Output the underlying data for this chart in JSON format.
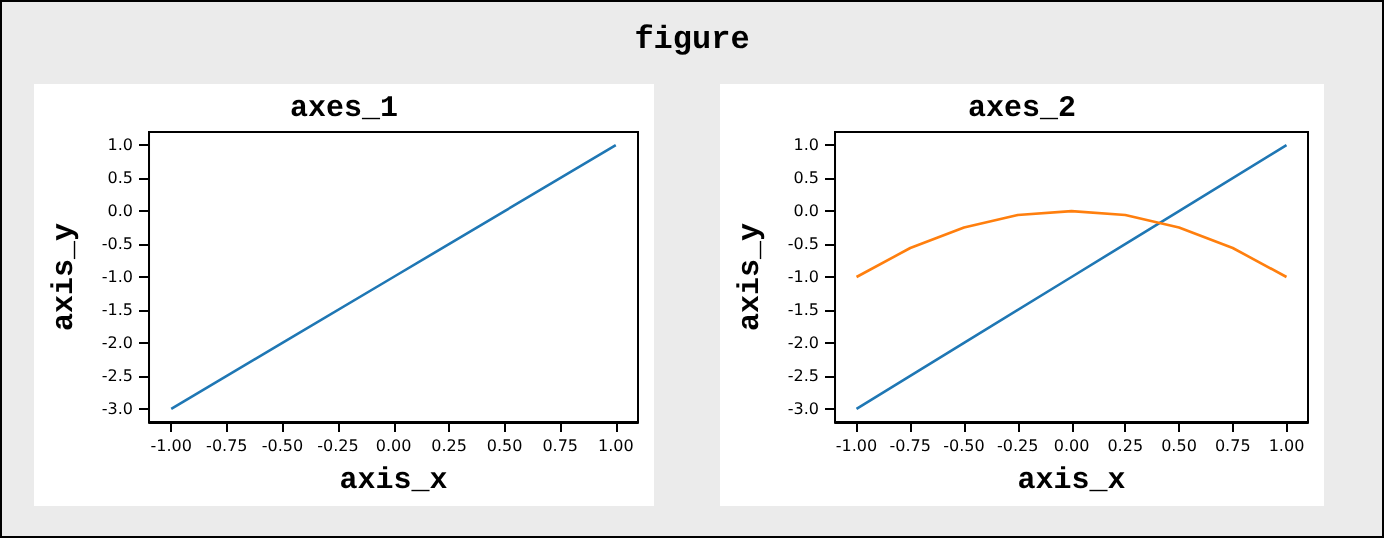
{
  "chart_data": [
    {
      "type": "line",
      "title": "axes_1",
      "xlabel": "axis_x",
      "ylabel": "axis_y",
      "marker": "none",
      "line_style": "solid",
      "annotations": [
        "figure"
      ],
      "xlim": [
        -1.1,
        1.1
      ],
      "ylim": [
        -3.2,
        1.2
      ],
      "xticks": [
        {
          "value": -1,
          "label": "-1.00"
        },
        {
          "value": -0.75,
          "label": "-0.75"
        },
        {
          "value": -0.5,
          "label": "-0.50"
        },
        {
          "value": -0.25,
          "label": "-0.25"
        },
        {
          "value": 0,
          "label": "0.00"
        },
        {
          "value": 0.25,
          "label": "0.25"
        },
        {
          "value": 0.5,
          "label": "0.50"
        },
        {
          "value": 0.75,
          "label": "0.75"
        },
        {
          "value": 1,
          "label": "1.00"
        }
      ],
      "yticks": [
        {
          "value": -3,
          "label": "-3.0"
        },
        {
          "value": -2.5,
          "label": "-2.5"
        },
        {
          "value": -2,
          "label": "-2.0"
        },
        {
          "value": -1.5,
          "label": "-1.5"
        },
        {
          "value": -1,
          "label": "-1.0"
        },
        {
          "value": -0.5,
          "label": "-0.5"
        },
        {
          "value": 0,
          "label": "0.0"
        },
        {
          "value": 0.5,
          "label": "0.5"
        },
        {
          "value": 1,
          "label": "1.0"
        }
      ],
      "series": [
        {
          "color": "#1f77b4",
          "x": [
            -1,
            -0.5,
            0,
            0.5,
            1
          ],
          "values": [
            -3,
            -2,
            -1,
            0,
            1
          ]
        }
      ]
    },
    {
      "type": "line",
      "title": "axes_2",
      "xlabel": "axis_x",
      "ylabel": "axis_y",
      "marker": "none",
      "line_style": "solid",
      "xlim": [
        -1.1,
        1.1
      ],
      "ylim": [
        -3.2,
        1.2
      ],
      "xticks": [
        {
          "value": -1,
          "label": "-1.00"
        },
        {
          "value": -0.75,
          "label": "-0.75"
        },
        {
          "value": -0.5,
          "label": "-0.50"
        },
        {
          "value": -0.25,
          "label": "-0.25"
        },
        {
          "value": 0,
          "label": "0.00"
        },
        {
          "value": 0.25,
          "label": "0.25"
        },
        {
          "value": 0.5,
          "label": "0.50"
        },
        {
          "value": 0.75,
          "label": "0.75"
        },
        {
          "value": 1,
          "label": "1.00"
        }
      ],
      "yticks": [
        {
          "value": -3,
          "label": "-3.0"
        },
        {
          "value": -2.5,
          "label": "-2.5"
        },
        {
          "value": -2,
          "label": "-2.0"
        },
        {
          "value": -1.5,
          "label": "-1.5"
        },
        {
          "value": -1,
          "label": "-1.0"
        },
        {
          "value": -0.5,
          "label": "-0.5"
        },
        {
          "value": 0,
          "label": "0.0"
        },
        {
          "value": 0.5,
          "label": "0.5"
        },
        {
          "value": 1,
          "label": "1.0"
        }
      ],
      "series": [
        {
          "color": "#1f77b4",
          "x": [
            -1,
            -0.5,
            0,
            0.5,
            1
          ],
          "values": [
            -3,
            -2,
            -1,
            0,
            1
          ]
        },
        {
          "color": "#ff7f0e",
          "x": [
            -1,
            -0.75,
            -0.5,
            -0.25,
            0,
            0.25,
            0.5,
            0.75,
            1
          ],
          "values": [
            -1,
            -0.56,
            -0.25,
            -0.06,
            0,
            -0.06,
            -0.25,
            -0.56,
            -1
          ]
        }
      ]
    }
  ]
}
